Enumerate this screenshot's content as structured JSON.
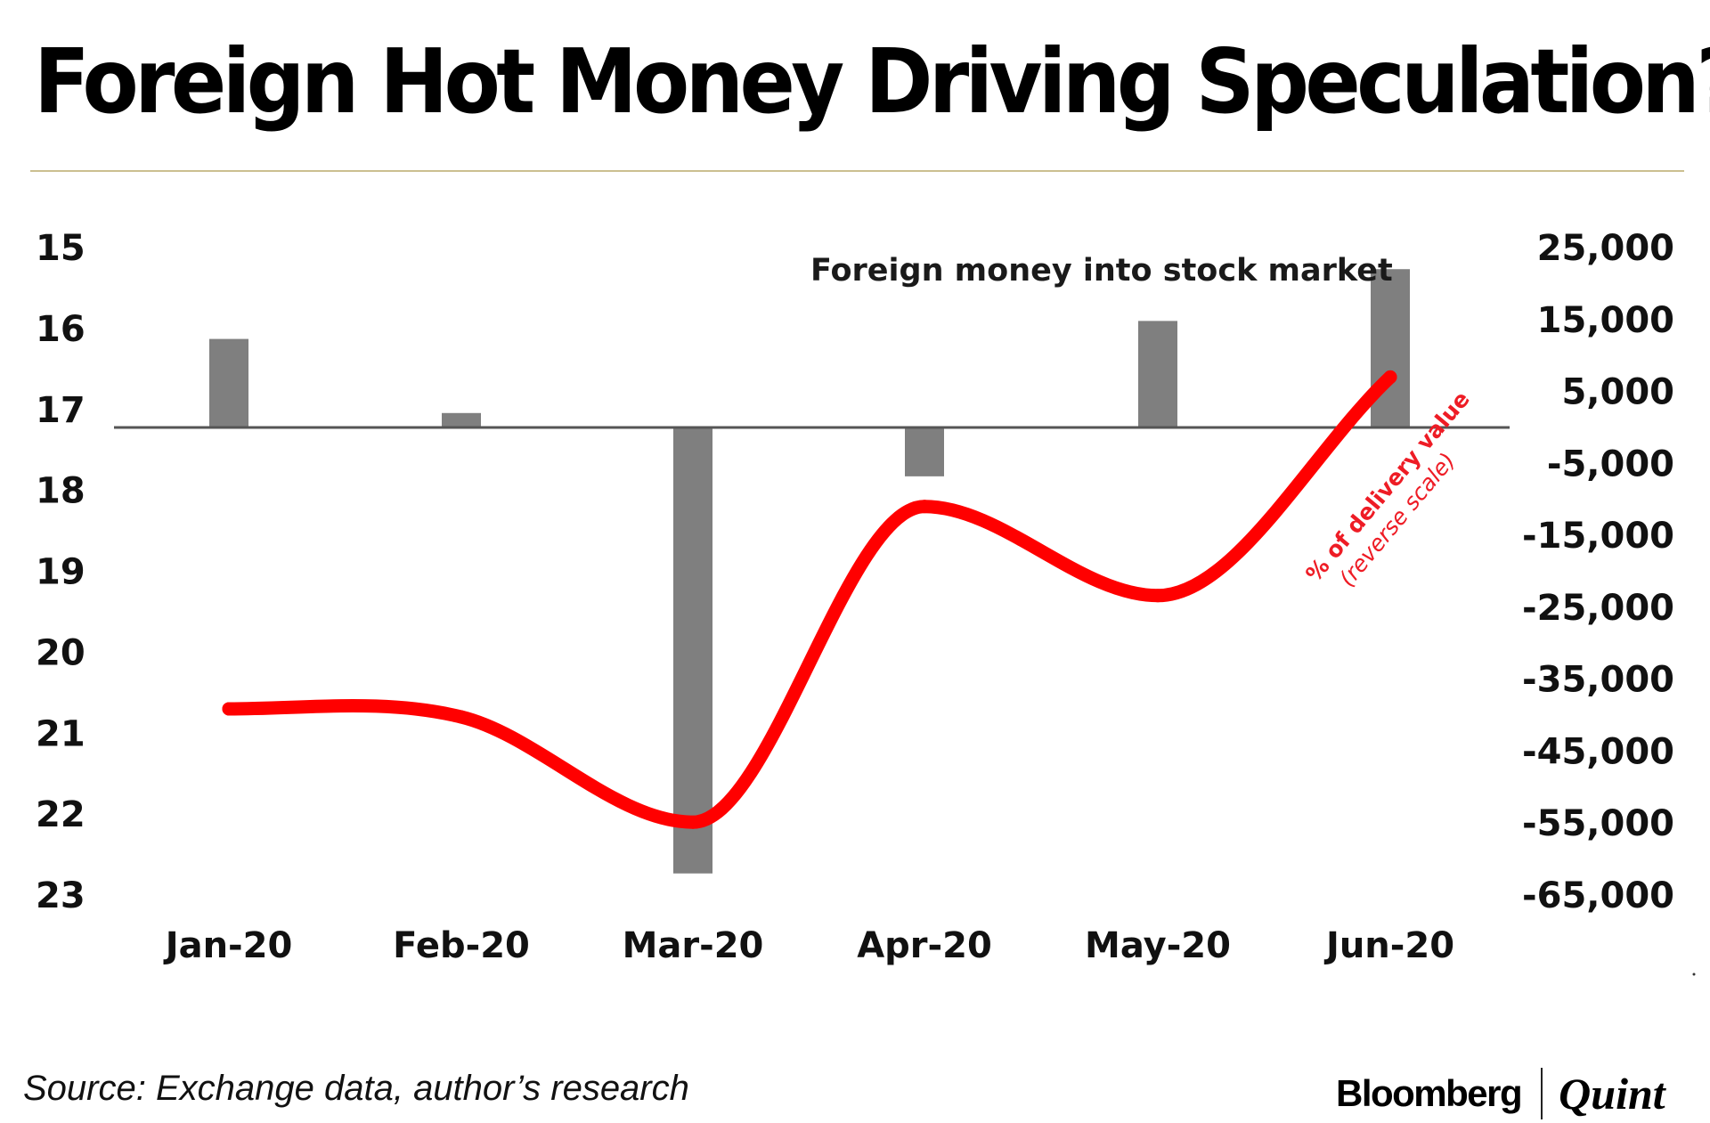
{
  "title": "Foreign Hot Money Driving Speculation?",
  "source": "Source: Exchange data, author’s research",
  "logo": {
    "primary": "Bloomberg",
    "secondary": "Quint"
  },
  "colors": {
    "bars": "#7f7f7f",
    "line": "#ff0000",
    "annotation_red": "#ee1c25",
    "rule": "#cbbf90",
    "axis": "#555555"
  },
  "chart_data": {
    "type": "bar+line",
    "title": "Foreign Hot Money Driving Speculation?",
    "categories": [
      "Jan-20",
      "Feb-20",
      "Mar-20",
      "Apr-20",
      "May-20",
      "Jun-20"
    ],
    "y_left": {
      "label": "% of delivery value (reverse scale)",
      "ticks": [
        "15",
        "16",
        "17",
        "18",
        "19",
        "20",
        "21",
        "22",
        "23"
      ],
      "range": [
        15,
        23
      ],
      "reversed": true
    },
    "y_right": {
      "label": "Foreign money into stock market",
      "ticks": [
        "25,000",
        "15,000",
        "5,000",
        "-5,000",
        "-15,000",
        "-25,000",
        "-35,000",
        "-45,000",
        "-55,000",
        "-65,000"
      ],
      "range": [
        -65000,
        25000
      ]
    },
    "series": [
      {
        "name": "Foreign money into stock market",
        "type": "bar",
        "axis": "right",
        "values": [
          12300,
          2000,
          -62000,
          -6800,
          14800,
          22000
        ]
      },
      {
        "name": "% of delivery value (reverse scale)",
        "type": "line",
        "axis": "left",
        "values": [
          20.7,
          20.8,
          22.1,
          18.2,
          19.3,
          16.6
        ]
      }
    ],
    "annotations": {
      "bar_series_label": "Foreign money into stock market",
      "line_label": "% of delivery value",
      "line_sublabel": "(reverse scale)"
    }
  }
}
